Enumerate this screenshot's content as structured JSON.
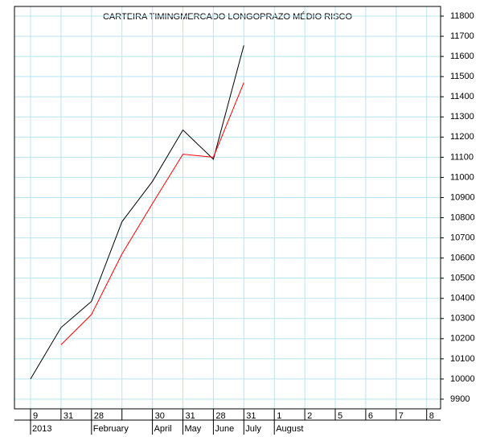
{
  "chart_data": {
    "type": "line",
    "title": "CARTEIRA TIMINGMERCADO LONGOPRAZO MÉDIO RISCO",
    "categories": [
      "9",
      "31",
      "28",
      null,
      "30",
      "31",
      "28",
      "31",
      "1",
      "2",
      "5",
      "6",
      "7",
      "8"
    ],
    "category_groups": [
      "2013",
      null,
      "February",
      null,
      "April",
      "May",
      "June",
      "July",
      "August",
      null,
      null,
      null,
      null,
      null
    ],
    "series": [
      {
        "color": "#000000",
        "values": [
          10000,
          10255,
          10385,
          10780,
          10980,
          11235,
          11090,
          11655,
          null,
          null,
          null,
          null,
          null,
          null
        ]
      },
      {
        "color": "#ff0000",
        "values": [
          null,
          10170,
          10320,
          10620,
          10870,
          11115,
          11100,
          11470,
          null,
          null,
          null,
          null,
          null,
          null
        ]
      }
    ],
    "ylim": [
      9852,
      11848
    ],
    "yticks": [
      9900,
      10000,
      10100,
      10200,
      10300,
      10400,
      10500,
      10600,
      10700,
      10800,
      10900,
      11000,
      11100,
      11200,
      11300,
      11400,
      11500,
      11600,
      11700,
      11800
    ],
    "grid": true,
    "grid_color": "#b8e4f0",
    "y_axis_side": "right"
  }
}
